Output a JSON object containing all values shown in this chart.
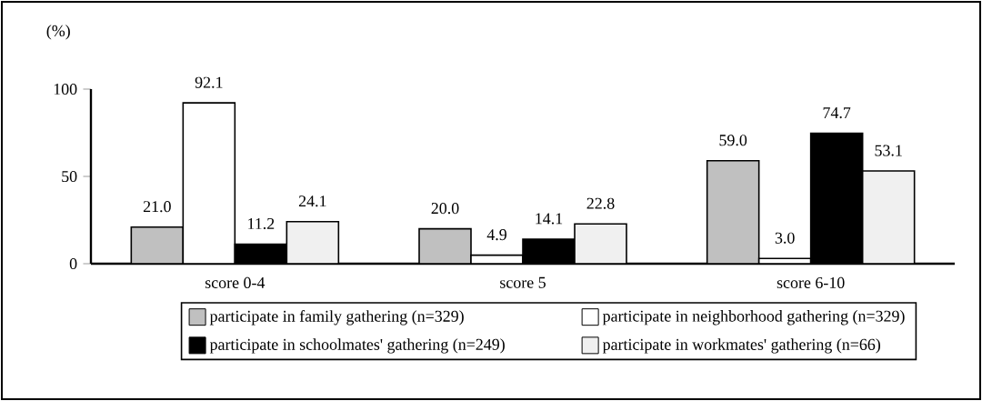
{
  "chart_data": {
    "type": "bar",
    "ylabel": "(%)",
    "categories": [
      "score 0-4",
      "score 5",
      "score 6-10"
    ],
    "series": [
      {
        "name": "participate in family gathering (n=329)",
        "color": "#c0c0c0",
        "values": [
          21.0,
          20.0,
          59.0
        ],
        "value_labels": [
          "21.0",
          "20.0",
          "59.0"
        ]
      },
      {
        "name": "participate in neighborhood gathering (n=329)",
        "color": "#ffffff",
        "values": [
          92.1,
          4.9,
          3.0
        ],
        "value_labels": [
          "92.1",
          "4.9",
          "3.0"
        ]
      },
      {
        "name": "participate in schoolmates' gathering (n=249)",
        "color": "#000000",
        "values": [
          11.2,
          14.1,
          74.7
        ],
        "value_labels": [
          "11.2",
          "14.1",
          "74.7"
        ]
      },
      {
        "name": "participate in workmates' gathering (n=66)",
        "color": "#f0f0f0",
        "values": [
          24.1,
          22.8,
          53.1
        ],
        "value_labels": [
          "24.1",
          "22.8",
          "53.1"
        ]
      }
    ],
    "ylim": [
      0,
      100
    ],
    "yticks": [
      0,
      50,
      100
    ],
    "grid": false,
    "legend": "bottom"
  }
}
